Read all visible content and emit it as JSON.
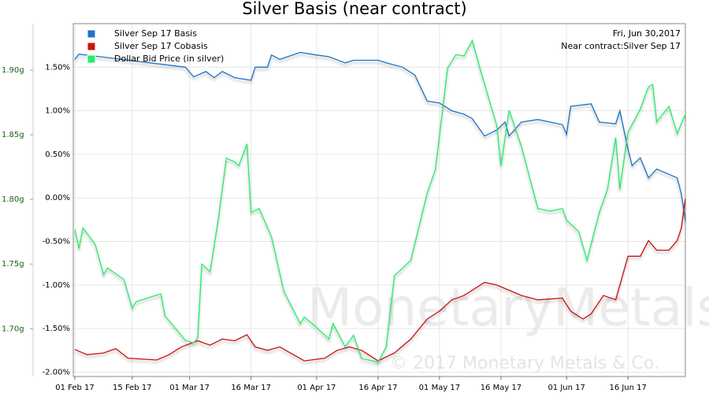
{
  "chart_data": {
    "type": "line",
    "title": "Silver Basis (near contract)",
    "annotations": [
      "Fri, Jun 30,2017",
      "Near contract:Silver Sep 17"
    ],
    "watermark": [
      "MonetaryMetals",
      "© 2017 Monetary Metals & Co."
    ],
    "xlim": [
      "2017-02-01",
      "2017-06-30"
    ],
    "xticks": [
      {
        "value": "2017-02-01",
        "label": "01 Feb 17"
      },
      {
        "value": "2017-02-15",
        "label": "15 Feb 17"
      },
      {
        "value": "2017-03-01",
        "label": "01 Mar 17"
      },
      {
        "value": "2017-03-16",
        "label": "16 Mar 17"
      },
      {
        "value": "2017-04-01",
        "label": "01 Apr 17"
      },
      {
        "value": "2017-04-16",
        "label": "16 Apr 17"
      },
      {
        "value": "2017-05-01",
        "label": "01 May 17"
      },
      {
        "value": "2017-05-16",
        "label": "16 May 17"
      },
      {
        "value": "2017-06-01",
        "label": "01 Jun 17"
      },
      {
        "value": "2017-06-16",
        "label": "16 Jun 17"
      }
    ],
    "ylim": [
      -2.05,
      2.0
    ],
    "yticks": [
      {
        "value": 1.5,
        "label": "1.50%"
      },
      {
        "value": 1.0,
        "label": "1.00%"
      },
      {
        "value": 0.5,
        "label": "0.50%"
      },
      {
        "value": 0,
        "label": "0.00%"
      },
      {
        "value": -0.5,
        "label": "-0.50%"
      },
      {
        "value": -1.0,
        "label": "-1.00%"
      },
      {
        "value": -1.5,
        "label": "-1.50%"
      },
      {
        "value": -2.0,
        "label": "-2.00%"
      }
    ],
    "y2lim": [
      1.663,
      1.936
    ],
    "y2ticks": [
      {
        "value": 1.9,
        "label": "1.90g"
      },
      {
        "value": 1.85,
        "label": "1.85g"
      },
      {
        "value": 1.8,
        "label": "1.80g"
      },
      {
        "value": 1.75,
        "label": "1.75g"
      },
      {
        "value": 1.7,
        "label": "1.70g"
      }
    ],
    "grid": true,
    "legend": "upper left",
    "series": [
      {
        "name": "Silver Sep 17 Basis",
        "color": "#1f72c4",
        "x": [
          "2017-02-01",
          "2017-02-02",
          "2017-02-28",
          "2017-03-02",
          "2017-03-05",
          "2017-03-07",
          "2017-03-09",
          "2017-03-12",
          "2017-03-16",
          "2017-03-17",
          "2017-03-20",
          "2017-03-21",
          "2017-03-23",
          "2017-03-28",
          "2017-04-01",
          "2017-04-04",
          "2017-04-08",
          "2017-04-10",
          "2017-04-16",
          "2017-04-18",
          "2017-04-22",
          "2017-04-25",
          "2017-04-28",
          "2017-05-01",
          "2017-05-04",
          "2017-05-07",
          "2017-05-09",
          "2017-05-12",
          "2017-05-15",
          "2017-05-17",
          "2017-05-18",
          "2017-05-21",
          "2017-05-25",
          "2017-05-28",
          "2017-05-31",
          "2017-06-01",
          "2017-06-02",
          "2017-06-07",
          "2017-06-09",
          "2017-06-13",
          "2017-06-14",
          "2017-06-16",
          "2017-06-17",
          "2017-06-19",
          "2017-06-21",
          "2017-06-23",
          "2017-06-28",
          "2017-06-29",
          "2017-06-30"
        ],
        "values": [
          1.59,
          1.65,
          1.5,
          1.39,
          1.45,
          1.38,
          1.45,
          1.38,
          1.35,
          1.5,
          1.5,
          1.64,
          1.59,
          1.67,
          1.64,
          1.62,
          1.55,
          1.58,
          1.58,
          1.55,
          1.5,
          1.41,
          1.11,
          1.09,
          1.0,
          0.96,
          0.91,
          0.71,
          0.78,
          0.87,
          0.71,
          0.87,
          0.9,
          0.87,
          0.84,
          0.73,
          1.05,
          1.08,
          0.87,
          0.85,
          1.0,
          0.56,
          0.37,
          0.46,
          0.23,
          0.33,
          0.23,
          0.05,
          -0.26
        ]
      },
      {
        "name": "Silver Sep 17 Cobasis",
        "color": "#cc1111",
        "x": [
          "2017-02-01",
          "2017-02-04",
          "2017-02-08",
          "2017-02-11",
          "2017-02-14",
          "2017-02-21",
          "2017-02-24",
          "2017-02-27",
          "2017-03-03",
          "2017-03-06",
          "2017-03-09",
          "2017-03-12",
          "2017-03-15",
          "2017-03-17",
          "2017-03-20",
          "2017-03-23",
          "2017-03-29",
          "2017-04-03",
          "2017-04-06",
          "2017-04-09",
          "2017-04-12",
          "2017-04-16",
          "2017-04-20",
          "2017-04-24",
          "2017-04-28",
          "2017-05-01",
          "2017-05-04",
          "2017-05-07",
          "2017-05-12",
          "2017-05-15",
          "2017-05-18",
          "2017-05-21",
          "2017-05-25",
          "2017-05-31",
          "2017-06-02",
          "2017-06-05",
          "2017-06-07",
          "2017-06-10",
          "2017-06-13",
          "2017-06-16",
          "2017-06-19",
          "2017-06-21",
          "2017-06-23",
          "2017-06-26",
          "2017-06-28",
          "2017-06-29",
          "2017-06-30"
        ],
        "values": [
          -1.74,
          -1.8,
          -1.78,
          -1.73,
          -1.84,
          -1.86,
          -1.8,
          -1.71,
          -1.64,
          -1.69,
          -1.62,
          -1.64,
          -1.57,
          -1.71,
          -1.75,
          -1.71,
          -1.87,
          -1.84,
          -1.75,
          -1.71,
          -1.75,
          -1.87,
          -1.78,
          -1.62,
          -1.39,
          -1.3,
          -1.17,
          -1.12,
          -0.97,
          -1.0,
          -1.06,
          -1.12,
          -1.17,
          -1.15,
          -1.3,
          -1.39,
          -1.33,
          -1.12,
          -1.17,
          -0.67,
          -0.67,
          -0.49,
          -0.6,
          -0.6,
          -0.49,
          -0.35,
          -0.01
        ]
      },
      {
        "name": "Dollar Bid Price (in silver)",
        "color": "#22ee66",
        "axis": "y2",
        "x": [
          "2017-02-01",
          "2017-02-02",
          "2017-02-03",
          "2017-02-06",
          "2017-02-08",
          "2017-02-09",
          "2017-02-13",
          "2017-02-15",
          "2017-02-16",
          "2017-02-19",
          "2017-02-22",
          "2017-02-23",
          "2017-02-28",
          "2017-03-02",
          "2017-03-03",
          "2017-03-04",
          "2017-03-06",
          "2017-03-08",
          "2017-03-10",
          "2017-03-12",
          "2017-03-13",
          "2017-03-15",
          "2017-03-16",
          "2017-03-18",
          "2017-03-21",
          "2017-03-24",
          "2017-03-28",
          "2017-03-29",
          "2017-04-01",
          "2017-04-04",
          "2017-04-05",
          "2017-04-08",
          "2017-04-10",
          "2017-04-12",
          "2017-04-16",
          "2017-04-18",
          "2017-04-20",
          "2017-04-24",
          "2017-04-28",
          "2017-04-30",
          "2017-05-03",
          "2017-05-05",
          "2017-05-07",
          "2017-05-09",
          "2017-05-11",
          "2017-05-15",
          "2017-05-16",
          "2017-05-18",
          "2017-05-21",
          "2017-05-24",
          "2017-05-25",
          "2017-05-28",
          "2017-05-31",
          "2017-06-01",
          "2017-06-04",
          "2017-06-06",
          "2017-06-09",
          "2017-06-11",
          "2017-06-13",
          "2017-06-14",
          "2017-06-16",
          "2017-06-19",
          "2017-06-21",
          "2017-06-22",
          "2017-06-23",
          "2017-06-26",
          "2017-06-28",
          "2017-06-30"
        ],
        "values": [
          1.777,
          1.762,
          1.778,
          1.765,
          1.742,
          1.747,
          1.738,
          1.716,
          1.721,
          1.724,
          1.727,
          1.71,
          1.691,
          1.689,
          1.693,
          1.75,
          1.744,
          1.784,
          1.832,
          1.829,
          1.826,
          1.843,
          1.79,
          1.793,
          1.771,
          1.729,
          1.704,
          1.709,
          1.701,
          1.692,
          1.704,
          1.686,
          1.695,
          1.677,
          1.674,
          1.686,
          1.741,
          1.753,
          1.805,
          1.823,
          1.902,
          1.912,
          1.911,
          1.923,
          1.9,
          1.857,
          1.826,
          1.869,
          1.841,
          1.805,
          1.793,
          1.791,
          1.793,
          1.784,
          1.775,
          1.753,
          1.79,
          1.808,
          1.848,
          1.808,
          1.852,
          1.87,
          1.887,
          1.889,
          1.86,
          1.872,
          1.851,
          1.866
        ]
      }
    ]
  }
}
